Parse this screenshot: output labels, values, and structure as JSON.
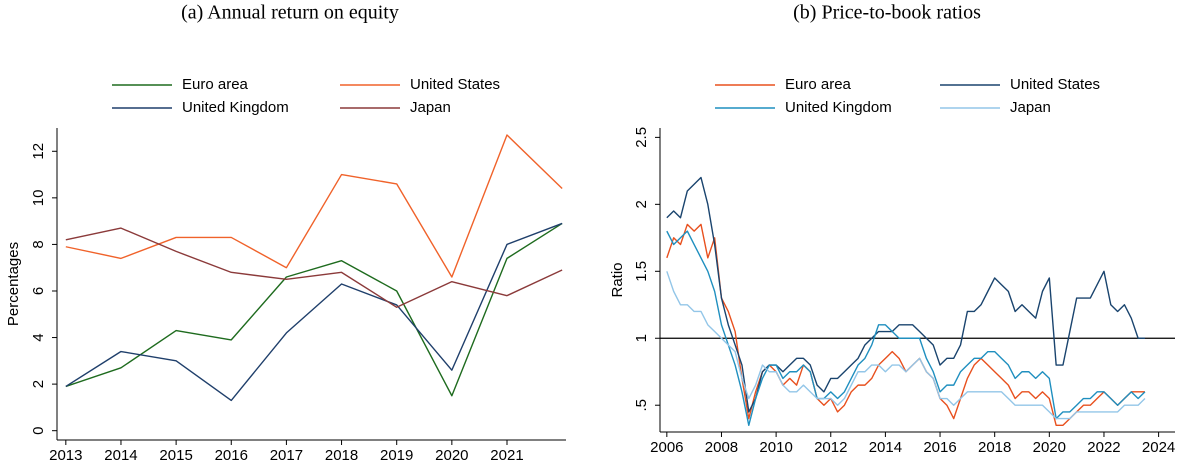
{
  "chart_data": [
    {
      "type": "line",
      "title": "(a) Annual return on equity",
      "y_label": "Percentages",
      "x": [
        2013,
        2014,
        2015,
        2016,
        2017,
        2018,
        2019,
        2020,
        2021,
        2022
      ],
      "xlim": [
        2012.84,
        2022.07
      ],
      "xticks": [
        2013,
        2014,
        2015,
        2016,
        2017,
        2018,
        2019,
        2020,
        2021
      ],
      "ylim": [
        -0.4,
        13.0
      ],
      "yticks": [
        0,
        2,
        4,
        6,
        8,
        10,
        12
      ],
      "grid": false,
      "legend": "top",
      "series": [
        {
          "name": "Euro area",
          "color": "#1e6b1e",
          "values": [
            1.9,
            2.7,
            4.3,
            3.9,
            6.6,
            7.3,
            6.0,
            1.5,
            7.4,
            8.9
          ]
        },
        {
          "name": "United States",
          "color": "#f0622a",
          "values": [
            7.9,
            7.4,
            8.3,
            8.3,
            7.0,
            11.0,
            10.6,
            6.6,
            12.7,
            10.4
          ]
        },
        {
          "name": "United Kingdom",
          "color": "#1f3f6b",
          "values": [
            1.9,
            3.4,
            3.0,
            1.3,
            4.2,
            6.3,
            5.4,
            2.6,
            8.0,
            8.9
          ]
        },
        {
          "name": "Japan",
          "color": "#8b3a3a",
          "values": [
            8.2,
            8.7,
            7.7,
            6.8,
            6.5,
            6.8,
            5.3,
            6.4,
            5.8,
            6.9
          ]
        }
      ]
    },
    {
      "type": "line",
      "title": "(b) Price-to-book ratios",
      "y_label": "Ratio",
      "x": [
        2006,
        2006.25,
        2006.5,
        2006.75,
        2007,
        2007.25,
        2007.5,
        2007.75,
        2008,
        2008.25,
        2008.5,
        2008.75,
        2009,
        2009.25,
        2009.5,
        2009.75,
        2010,
        2010.25,
        2010.5,
        2010.75,
        2011,
        2011.25,
        2011.5,
        2011.75,
        2012,
        2012.25,
        2012.5,
        2012.75,
        2013,
        2013.25,
        2013.5,
        2013.75,
        2014,
        2014.25,
        2014.5,
        2014.75,
        2015,
        2015.25,
        2015.5,
        2015.75,
        2016,
        2016.25,
        2016.5,
        2016.75,
        2017,
        2017.25,
        2017.5,
        2017.75,
        2018,
        2018.25,
        2018.5,
        2018.75,
        2019,
        2019.25,
        2019.5,
        2019.75,
        2020,
        2020.25,
        2020.5,
        2020.75,
        2021,
        2021.25,
        2021.5,
        2021.75,
        2022,
        2022.25,
        2022.5,
        2022.75,
        2023,
        2023.25,
        2023.5
      ],
      "xlim": [
        2005.75,
        2024.6
      ],
      "xticks": [
        2006,
        2008,
        2010,
        2012,
        2014,
        2016,
        2018,
        2020,
        2022,
        2024
      ],
      "ylim": [
        0.3,
        2.57
      ],
      "yticks": [
        {
          "value": 0.5,
          "label": ".5"
        },
        1,
        1.5,
        2,
        2.5
      ],
      "hline": 1,
      "grid": false,
      "legend": "top",
      "series": [
        {
          "name": "Euro area",
          "color": "#e8501e",
          "values": [
            1.6,
            1.75,
            1.7,
            1.85,
            1.8,
            1.85,
            1.6,
            1.75,
            1.3,
            1.2,
            1.05,
            0.7,
            0.4,
            0.6,
            0.75,
            0.8,
            0.75,
            0.65,
            0.7,
            0.65,
            0.8,
            0.75,
            0.55,
            0.5,
            0.55,
            0.45,
            0.5,
            0.6,
            0.65,
            0.65,
            0.7,
            0.8,
            0.85,
            0.9,
            0.85,
            0.75,
            0.8,
            0.85,
            0.75,
            0.7,
            0.55,
            0.5,
            0.4,
            0.55,
            0.7,
            0.8,
            0.85,
            0.8,
            0.75,
            0.7,
            0.65,
            0.55,
            0.6,
            0.6,
            0.55,
            0.6,
            0.55,
            0.35,
            0.35,
            0.4,
            0.45,
            0.5,
            0.5,
            0.55,
            0.6,
            0.55,
            0.5,
            0.55,
            0.6,
            0.6,
            0.6
          ]
        },
        {
          "name": "United States",
          "color": "#1a446e",
          "values": [
            1.9,
            1.95,
            1.9,
            2.1,
            2.15,
            2.2,
            2.0,
            1.7,
            1.3,
            1.1,
            0.95,
            0.8,
            0.45,
            0.55,
            0.75,
            0.8,
            0.8,
            0.75,
            0.8,
            0.85,
            0.85,
            0.8,
            0.65,
            0.6,
            0.7,
            0.7,
            0.75,
            0.8,
            0.85,
            0.95,
            1.0,
            1.05,
            1.05,
            1.05,
            1.1,
            1.1,
            1.1,
            1.05,
            1.0,
            0.95,
            0.8,
            0.85,
            0.85,
            0.95,
            1.2,
            1.2,
            1.25,
            1.35,
            1.45,
            1.4,
            1.35,
            1.2,
            1.25,
            1.2,
            1.15,
            1.35,
            1.45,
            0.8,
            0.8,
            1.05,
            1.3,
            1.3,
            1.3,
            1.4,
            1.5,
            1.25,
            1.2,
            1.25,
            1.15,
            1.0,
            1.0
          ]
        },
        {
          "name": "United Kingdom",
          "color": "#1f8fbf",
          "values": [
            1.8,
            1.7,
            1.75,
            1.8,
            1.7,
            1.6,
            1.5,
            1.35,
            1.1,
            0.95,
            0.8,
            0.6,
            0.35,
            0.55,
            0.7,
            0.8,
            0.8,
            0.7,
            0.75,
            0.75,
            0.8,
            0.75,
            0.55,
            0.55,
            0.6,
            0.55,
            0.6,
            0.7,
            0.8,
            0.85,
            0.95,
            1.1,
            1.1,
            1.05,
            1.0,
            1.0,
            1.0,
            1.0,
            0.85,
            0.75,
            0.6,
            0.65,
            0.65,
            0.75,
            0.8,
            0.85,
            0.85,
            0.9,
            0.9,
            0.85,
            0.8,
            0.7,
            0.75,
            0.75,
            0.7,
            0.75,
            0.7,
            0.4,
            0.45,
            0.45,
            0.5,
            0.55,
            0.55,
            0.6,
            0.6,
            0.55,
            0.5,
            0.55,
            0.6,
            0.55,
            0.6
          ]
        },
        {
          "name": "Japan",
          "color": "#93c6e8",
          "values": [
            1.5,
            1.35,
            1.25,
            1.25,
            1.2,
            1.2,
            1.1,
            1.05,
            1.0,
            0.95,
            0.9,
            0.7,
            0.55,
            0.65,
            0.8,
            0.75,
            0.75,
            0.65,
            0.6,
            0.6,
            0.65,
            0.6,
            0.55,
            0.55,
            0.55,
            0.5,
            0.55,
            0.65,
            0.75,
            0.75,
            0.8,
            0.8,
            0.75,
            0.8,
            0.8,
            0.75,
            0.8,
            0.85,
            0.75,
            0.7,
            0.55,
            0.55,
            0.5,
            0.55,
            0.6,
            0.6,
            0.6,
            0.6,
            0.6,
            0.6,
            0.55,
            0.5,
            0.5,
            0.5,
            0.5,
            0.5,
            0.45,
            0.4,
            0.4,
            0.4,
            0.45,
            0.45,
            0.45,
            0.45,
            0.45,
            0.45,
            0.45,
            0.5,
            0.5,
            0.5,
            0.55
          ]
        }
      ]
    }
  ]
}
